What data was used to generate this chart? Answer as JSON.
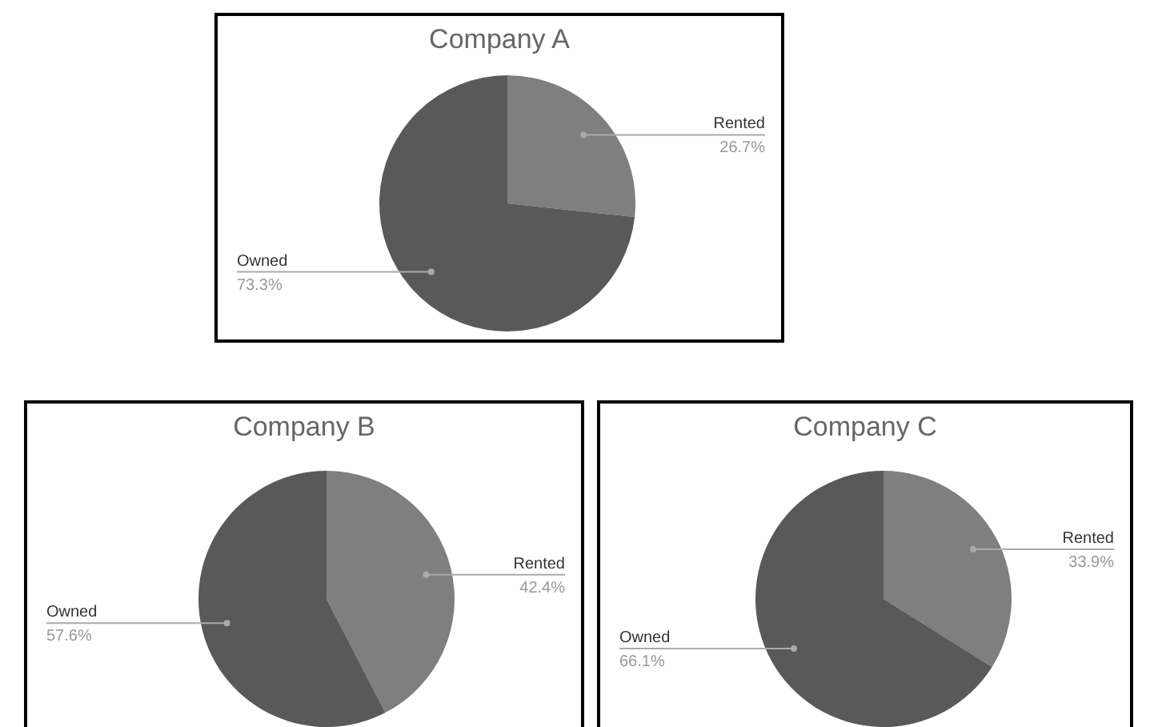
{
  "chart_data": [
    {
      "type": "pie",
      "title": "Company A",
      "categories": [
        "Rented",
        "Owned"
      ],
      "values": [
        26.7,
        73.3
      ],
      "value_labels": [
        "26.7%",
        "73.3%"
      ],
      "colors": [
        "#7f7f7f",
        "#595959"
      ],
      "legend": false
    },
    {
      "type": "pie",
      "title": "Company B",
      "categories": [
        "Rented",
        "Owned"
      ],
      "values": [
        42.4,
        57.6
      ],
      "value_labels": [
        "42.4%",
        "57.6%"
      ],
      "colors": [
        "#7f7f7f",
        "#595959"
      ],
      "legend": false
    },
    {
      "type": "pie",
      "title": "Company C",
      "categories": [
        "Rented",
        "Owned"
      ],
      "values": [
        33.9,
        66.1
      ],
      "value_labels": [
        "33.9%",
        "66.1%"
      ],
      "colors": [
        "#7f7f7f",
        "#595959"
      ],
      "legend": false
    }
  ]
}
